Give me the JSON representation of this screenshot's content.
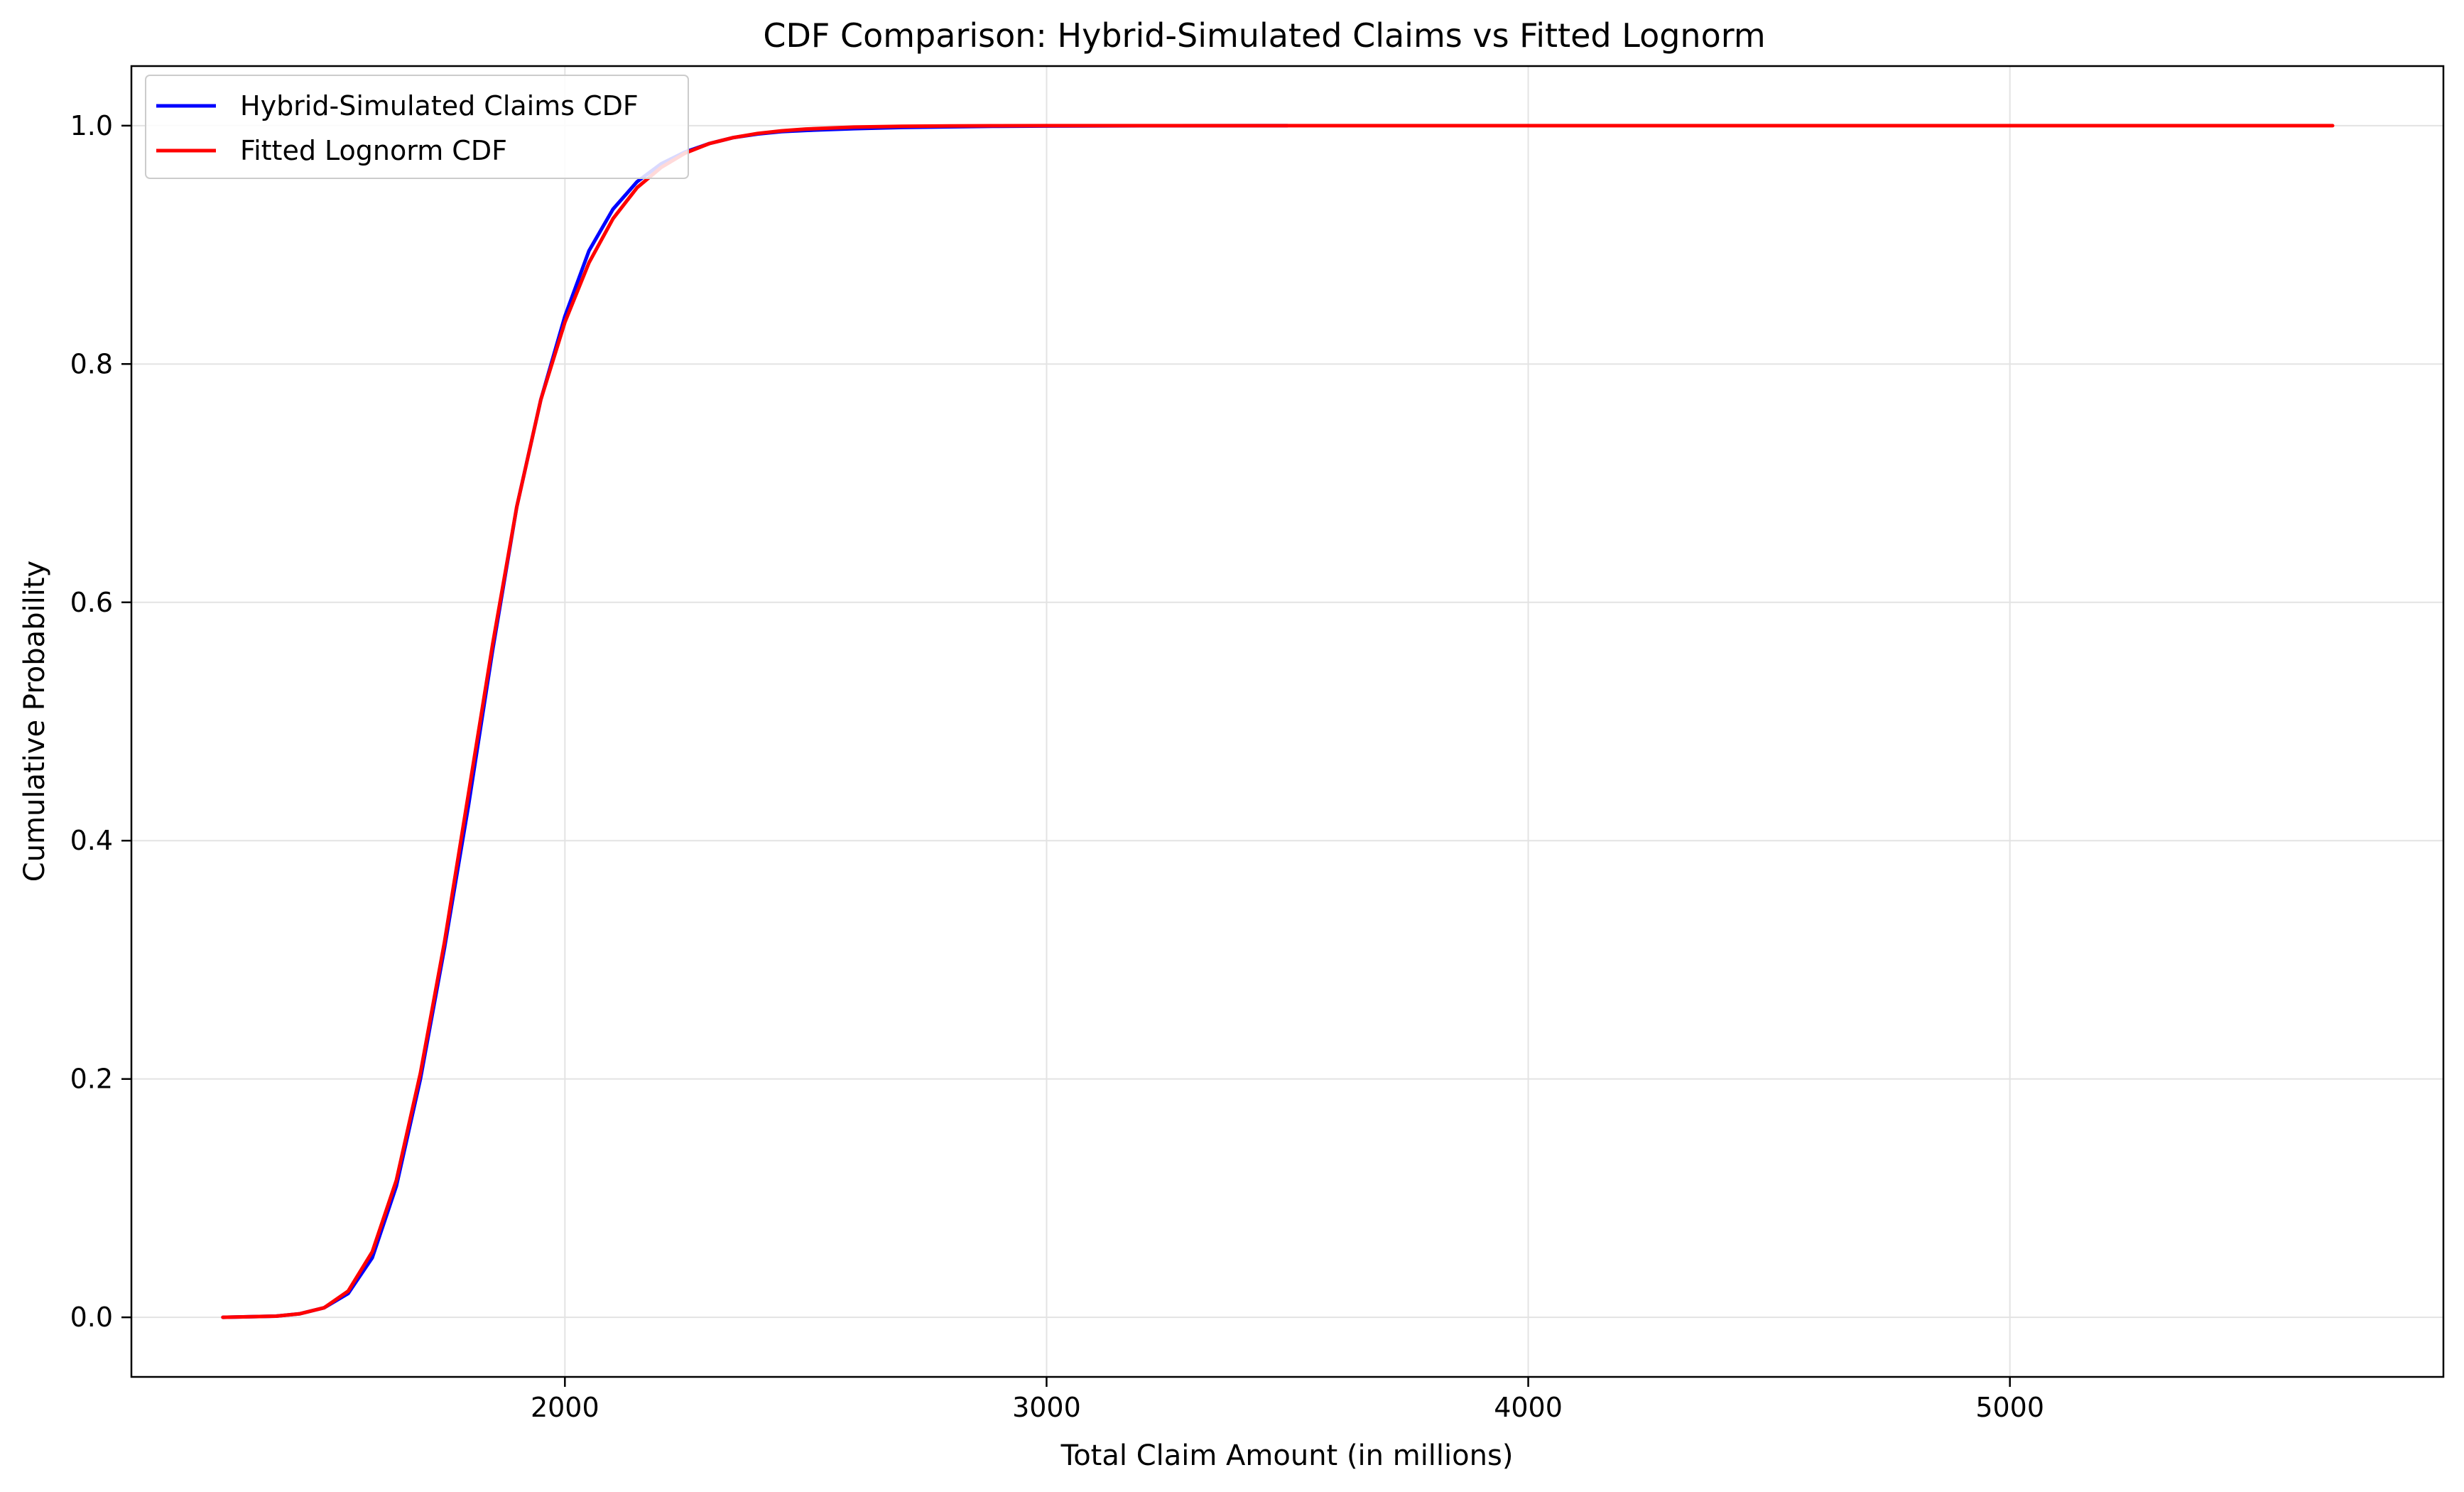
{
  "chart_data": {
    "type": "line",
    "title": "CDF Comparison: Hybrid-Simulated Claims vs Fitted Lognorm",
    "xlabel": "Total Claim Amount (in millions)",
    "ylabel": "Cumulative Probability",
    "xlim": [
      1100,
      5900
    ],
    "ylim": [
      -0.05,
      1.05
    ],
    "xticks": [
      2000,
      3000,
      4000,
      5000
    ],
    "xtick_labels": [
      "2000",
      "3000",
      "4000",
      "5000"
    ],
    "yticks": [
      0.0,
      0.2,
      0.4,
      0.6,
      0.8,
      1.0
    ],
    "ytick_labels": [
      "0.0",
      "0.2",
      "0.4",
      "0.6",
      "0.8",
      "1.0"
    ],
    "grid": true,
    "legend": "top-left",
    "series": [
      {
        "name": "Hybrid-Simulated Claims CDF",
        "color": "#0000ff",
        "x": [
          1290,
          1400,
          1450,
          1500,
          1550,
          1600,
          1650,
          1700,
          1750,
          1800,
          1850,
          1900,
          1950,
          2000,
          2050,
          2100,
          2150,
          2200,
          2250,
          2300,
          2350,
          2400,
          2450,
          2500,
          2600,
          2700,
          2800,
          2900,
          3000,
          3200,
          3500
        ],
        "y": [
          0.0,
          0.001,
          0.003,
          0.008,
          0.02,
          0.05,
          0.11,
          0.2,
          0.31,
          0.43,
          0.56,
          0.68,
          0.77,
          0.84,
          0.895,
          0.93,
          0.953,
          0.968,
          0.978,
          0.985,
          0.99,
          0.993,
          0.995,
          0.996,
          0.9975,
          0.9985,
          0.999,
          0.9995,
          0.9997,
          0.9999,
          1.0
        ]
      },
      {
        "name": "Fitted Lognorm CDF",
        "color": "#ff0000",
        "x": [
          1290,
          1400,
          1450,
          1500,
          1550,
          1600,
          1650,
          1700,
          1750,
          1800,
          1850,
          1900,
          1950,
          2000,
          2050,
          2100,
          2150,
          2200,
          2250,
          2300,
          2350,
          2400,
          2450,
          2500,
          2600,
          2700,
          2800,
          2900,
          3000,
          3500,
          4000,
          4500,
          5000,
          5500,
          5670
        ],
        "y": [
          0.0,
          0.001,
          0.003,
          0.008,
          0.022,
          0.055,
          0.115,
          0.205,
          0.315,
          0.44,
          0.565,
          0.68,
          0.77,
          0.835,
          0.885,
          0.922,
          0.948,
          0.965,
          0.977,
          0.985,
          0.99,
          0.9935,
          0.9957,
          0.9972,
          0.9988,
          0.9995,
          0.9998,
          0.9999,
          1.0,
          1.0,
          1.0,
          1.0,
          1.0,
          1.0,
          1.0
        ]
      }
    ]
  }
}
